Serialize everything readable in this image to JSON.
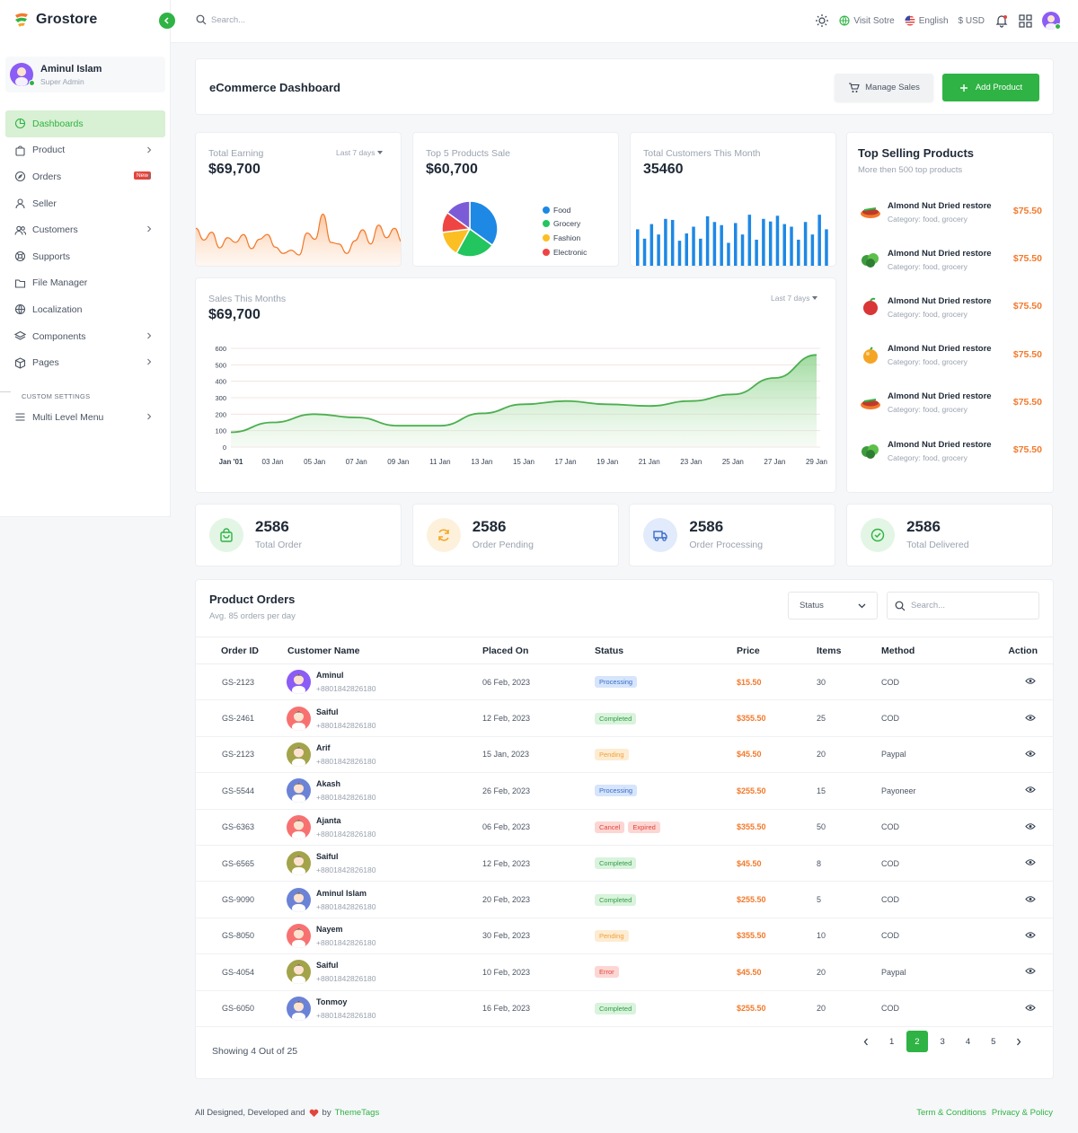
{
  "brand": {
    "name": "Grostore"
  },
  "user": {
    "name": "Aminul Islam",
    "role": "Super Admin"
  },
  "sidebar": {
    "items": [
      {
        "label": "Dashboards",
        "icon": "pie-chart-icon",
        "active": true
      },
      {
        "label": "Product",
        "icon": "bag-icon",
        "chevron": true
      },
      {
        "label": "Orders",
        "icon": "compass-icon",
        "badge": "New",
        "chevron": true
      },
      {
        "label": "Seller",
        "icon": "user-icon"
      },
      {
        "label": "Customers",
        "icon": "users-icon",
        "chevron": true
      },
      {
        "label": "Supports",
        "icon": "lifebuoy-icon"
      },
      {
        "label": "File Manager",
        "icon": "folder-icon"
      },
      {
        "label": "Localization",
        "icon": "globe-icon"
      },
      {
        "label": "Components",
        "icon": "layers-icon",
        "chevron": true
      },
      {
        "label": "Pages",
        "icon": "box-icon",
        "chevron": true
      }
    ],
    "section_label": "CUSTOM SETTINGS",
    "extra_item": {
      "label": "Multi Level Menu",
      "icon": "menu-icon"
    }
  },
  "topbar": {
    "search_placeholder": "Search...",
    "visit_store": "Visit Sotre",
    "language": "English",
    "currency": "$ USD"
  },
  "page": {
    "title": "eCommerce Dashboard",
    "manage_sales": "Manage Sales",
    "add_product": "Add Product"
  },
  "cards": {
    "earning": {
      "title": "Total Earning",
      "value": "$69,700",
      "range": "Last 7 days"
    },
    "top5": {
      "title": "Top 5 Products Sale",
      "value": "$60,700"
    },
    "customers": {
      "title": "Total Customers This Month",
      "value": "35460"
    },
    "sales": {
      "title": "Sales This Months",
      "value": "$69,700",
      "range": "Last 7 days"
    }
  },
  "colors": {
    "accent": "#2fb344",
    "orange": "#f27a2c",
    "blue": "#1e88e5"
  },
  "chart_data": [
    {
      "type": "area",
      "title": "Total Earning",
      "values": [
        5,
        3.5,
        4.5,
        2.5,
        3.8,
        3.2,
        4.2,
        2.4,
        3.6,
        4.2,
        2.6,
        1.8,
        2.2,
        1.6,
        4.4,
        3.6,
        6.8,
        3.2,
        3.0,
        1.8,
        3.4,
        4.8,
        3.0,
        5.4,
        3.8,
        5.0,
        3.2
      ]
    },
    {
      "type": "pie",
      "title": "Top 5 Products Sale",
      "series": [
        {
          "name": "Food",
          "value": 35,
          "color": "#1e88e5"
        },
        {
          "name": "Grocery",
          "value": 23,
          "color": "#22c55e"
        },
        {
          "name": "Fashion",
          "value": 15,
          "color": "#fbbf24"
        },
        {
          "name": "Electronic",
          "value": 12,
          "color": "#ef4444"
        },
        {
          "name": "",
          "value": 15,
          "color": "#7c5cd6"
        }
      ]
    },
    {
      "type": "bar",
      "title": "Total Customers This Month",
      "values": [
        70,
        52,
        80,
        60,
        90,
        88,
        48,
        62,
        75,
        52,
        95,
        84,
        78,
        44,
        82,
        60,
        98,
        50,
        90,
        85,
        96,
        80,
        75,
        50,
        84,
        60,
        98,
        70
      ]
    },
    {
      "type": "area",
      "title": "Sales This Months",
      "xlabel": "",
      "ylabel": "",
      "categories": [
        "Jan '01",
        "03 Jan",
        "05 Jan",
        "07 Jan",
        "09 Jan",
        "11 Jan",
        "13 Jan",
        "15 Jan",
        "17 Jan",
        "19 Jan",
        "21 Jan",
        "23 Jan",
        "25 Jan",
        "27 Jan",
        "29 Jan"
      ],
      "values": [
        90,
        150,
        200,
        180,
        130,
        130,
        205,
        260,
        280,
        260,
        250,
        280,
        320,
        420,
        560
      ],
      "yticks": [
        0,
        100,
        200,
        300,
        400,
        500,
        600
      ],
      "ylim": [
        0,
        600
      ]
    }
  ],
  "top_selling": {
    "title": "Top Selling Products",
    "subtitle": "More then 500 top products",
    "items": [
      {
        "name": "Almond Nut Dried restore",
        "category": "Category: food, grocery",
        "price": "$75.50",
        "icon": "food-icon"
      },
      {
        "name": "Almond Nut Dried restore",
        "category": "Category: food, grocery",
        "price": "$75.50",
        "icon": "vegetable-icon"
      },
      {
        "name": "Almond Nut Dried restore",
        "category": "Category: food, grocery",
        "price": "$75.50",
        "icon": "fruit-icon"
      },
      {
        "name": "Almond Nut Dried restore",
        "category": "Category: food, grocery",
        "price": "$75.50",
        "icon": "orange-icon"
      },
      {
        "name": "Almond Nut Dried restore",
        "category": "Category: food, grocery",
        "price": "$75.50",
        "icon": "food-icon"
      },
      {
        "name": "Almond Nut Dried restore",
        "category": "Category: food, grocery",
        "price": "$75.50",
        "icon": "vegetable-icon"
      }
    ]
  },
  "stats": [
    {
      "value": "2586",
      "label": "Total Order",
      "icon": "bag-icon",
      "color": "#2fb344",
      "bg": "#e3f5e4"
    },
    {
      "value": "2586",
      "label": "Order Pending",
      "icon": "refresh-icon",
      "color": "#f5a524",
      "bg": "#fdf1dc"
    },
    {
      "value": "2586",
      "label": "Order Processing",
      "icon": "truck-icon",
      "color": "#3a6bc9",
      "bg": "#e2ebfb"
    },
    {
      "value": "2586",
      "label": "Total Delivered",
      "icon": "check-circle-icon",
      "color": "#2fb344",
      "bg": "#e3f5e4"
    }
  ],
  "orders": {
    "title": "Product Orders",
    "subtitle": "Avg. 85 orders per day",
    "status_label": "Status",
    "search_placeholder": "Search...",
    "columns": [
      "Order ID",
      "Customer Name",
      "Placed On",
      "Status",
      "Price",
      "Items",
      "Method",
      "Action"
    ],
    "rows": [
      {
        "id": "GS-2123",
        "name": "Aminul",
        "phone": "+8801842826180",
        "date": "06 Feb, 2023",
        "status": [
          "Processing"
        ],
        "price": "$15.50",
        "items": "30",
        "method": "COD",
        "avatar": "#8b5cf6"
      },
      {
        "id": "GS-2461",
        "name": "Saiful",
        "phone": "+8801842826180",
        "date": "12 Feb, 2023",
        "status": [
          "Completed"
        ],
        "price": "$355.50",
        "items": "25",
        "method": "COD",
        "avatar": "#f87171"
      },
      {
        "id": "GS-2123",
        "name": "Arif",
        "phone": "+8801842826180",
        "date": "15 Jan, 2023",
        "status": [
          "Pending"
        ],
        "price": "$45.50",
        "items": "20",
        "method": "Paypal",
        "avatar": "#a3a34a"
      },
      {
        "id": "GS-5544",
        "name": "Akash",
        "phone": "+8801842826180",
        "date": "26 Feb, 2023",
        "status": [
          "Processing"
        ],
        "price": "$255.50",
        "items": "15",
        "method": "Payoneer",
        "avatar": "#6b83d6"
      },
      {
        "id": "GS-6363",
        "name": "Ajanta",
        "phone": "+8801842826180",
        "date": "06 Feb, 2023",
        "status": [
          "Cancel",
          "Expired"
        ],
        "price": "$355.50",
        "items": "50",
        "method": "COD",
        "avatar": "#f87171"
      },
      {
        "id": "GS-6565",
        "name": "Saiful",
        "phone": "+8801842826180",
        "date": "12 Feb, 2023",
        "status": [
          "Completed"
        ],
        "price": "$45.50",
        "items": "8",
        "method": "COD",
        "avatar": "#a3a34a"
      },
      {
        "id": "GS-9090",
        "name": "Aminul Islam",
        "phone": "+8801842826180",
        "date": "20 Feb, 2023",
        "status": [
          "Completed"
        ],
        "price": "$255.50",
        "items": "5",
        "method": "COD",
        "avatar": "#6b83d6"
      },
      {
        "id": "GS-8050",
        "name": "Nayem",
        "phone": "+8801842826180",
        "date": "30 Feb, 2023",
        "status": [
          "Pending"
        ],
        "price": "$355.50",
        "items": "10",
        "method": "COD",
        "avatar": "#f87171"
      },
      {
        "id": "GS-4054",
        "name": "Saiful",
        "phone": "+8801842826180",
        "date": "10 Feb, 2023",
        "status": [
          "Error"
        ],
        "price": "$45.50",
        "items": "20",
        "method": "Paypal",
        "avatar": "#a3a34a"
      },
      {
        "id": "GS-6050",
        "name": "Tonmoy",
        "phone": "+8801842826180",
        "date": "16 Feb, 2023",
        "status": [
          "Completed"
        ],
        "price": "$255.50",
        "items": "20",
        "method": "COD",
        "avatar": "#6b83d6"
      }
    ],
    "showing": "Showing 4 Out of 25",
    "pages": [
      "1",
      "2",
      "3",
      "4",
      "5"
    ],
    "current_page": "2"
  },
  "footer": {
    "left_prefix": "All Designed, Developed and",
    "left_by": "by",
    "brand": "ThemeTags",
    "links": [
      "Term & Conditions",
      "Privacy & Policy"
    ]
  }
}
